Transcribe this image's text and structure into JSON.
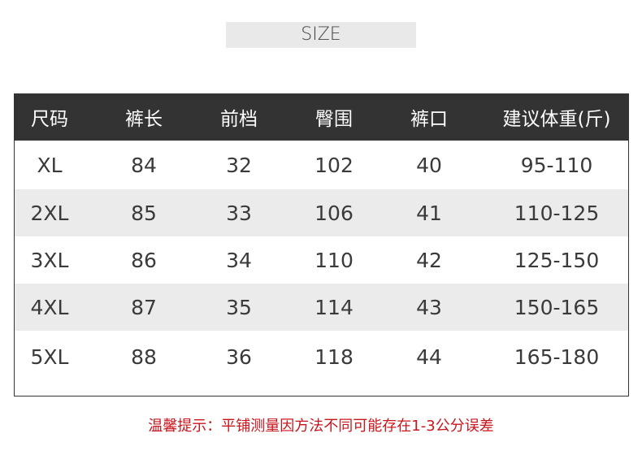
{
  "banner": {
    "title": "SIZE"
  },
  "table": {
    "headers": [
      "尺码",
      "裤长",
      "前档",
      "臀围",
      "裤口",
      "建议体重(斤)"
    ],
    "rows": [
      [
        "XL",
        "84",
        "32",
        "102",
        "40",
        "95-110"
      ],
      [
        "2XL",
        "85",
        "33",
        "106",
        "41",
        "110-125"
      ],
      [
        "3XL",
        "86",
        "34",
        "110",
        "42",
        "125-150"
      ],
      [
        "4XL",
        "87",
        "35",
        "114",
        "43",
        "150-165"
      ],
      [
        "5XL",
        "88",
        "36",
        "118",
        "44",
        "165-180"
      ]
    ]
  },
  "note": "温馨提示：平铺测量因方法不同可能存在1-3公分误差",
  "colors": {
    "header_bg": "#333333",
    "stripe": "#ebebeb",
    "note": "#c9161d"
  }
}
